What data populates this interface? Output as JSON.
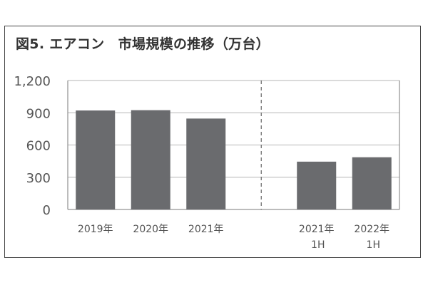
{
  "chart_data": {
    "type": "bar",
    "title": "図5. エアコン　市場規模の推移（万台）",
    "categories": [
      {
        "line1": "2019年",
        "line2": ""
      },
      {
        "line1": "2020年",
        "line2": ""
      },
      {
        "line1": "2021年",
        "line2": ""
      },
      {
        "line1": "2021年",
        "line2": "1H"
      },
      {
        "line1": "2022年",
        "line2": "1H"
      }
    ],
    "values": [
      921,
      924,
      846,
      445,
      486
    ],
    "ylim": [
      0,
      1200
    ],
    "yticks": [
      0,
      300,
      600,
      900,
      "1,200"
    ],
    "grid": true,
    "divider_between": [
      2,
      3
    ],
    "colors": {
      "bar": "#6a6b6e",
      "grid": "#b5b5b5",
      "axis": "#7a7a7a",
      "divider": "#666666",
      "frame": "#444444"
    }
  }
}
